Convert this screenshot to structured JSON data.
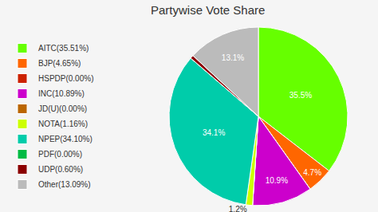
{
  "chart_data": {
    "type": "pie",
    "title": "Partywise Vote Share",
    "categories": [
      "AITC(35.51%)",
      "BJP(4.65%)",
      "HSPDP(0.00%)",
      "INC(10.89%)",
      "JD(U)(0.00%)",
      "NOTA(1.16%)",
      "NPEP(34.10%)",
      "PDF(0.00%)",
      "UDP(0.60%)",
      "Other(13.09%)"
    ],
    "values": [
      35.5,
      4.7,
      0,
      10.9,
      0,
      1.2,
      34.1,
      0,
      0.6,
      13.1
    ],
    "value_labels": [
      "35.5%",
      "4.7%",
      null,
      "10.9%",
      null,
      "1.2%",
      "34.1%",
      null,
      null,
      "13.1%"
    ],
    "colors": [
      "#66ff00",
      "#ff6600",
      "#cc2200",
      "#cc00cc",
      "#bb6600",
      "#ccff00",
      "#00ccaa",
      "#00bb44",
      "#8b0000",
      "#bbbbbb"
    ],
    "data_labels": true,
    "legend": "left"
  }
}
